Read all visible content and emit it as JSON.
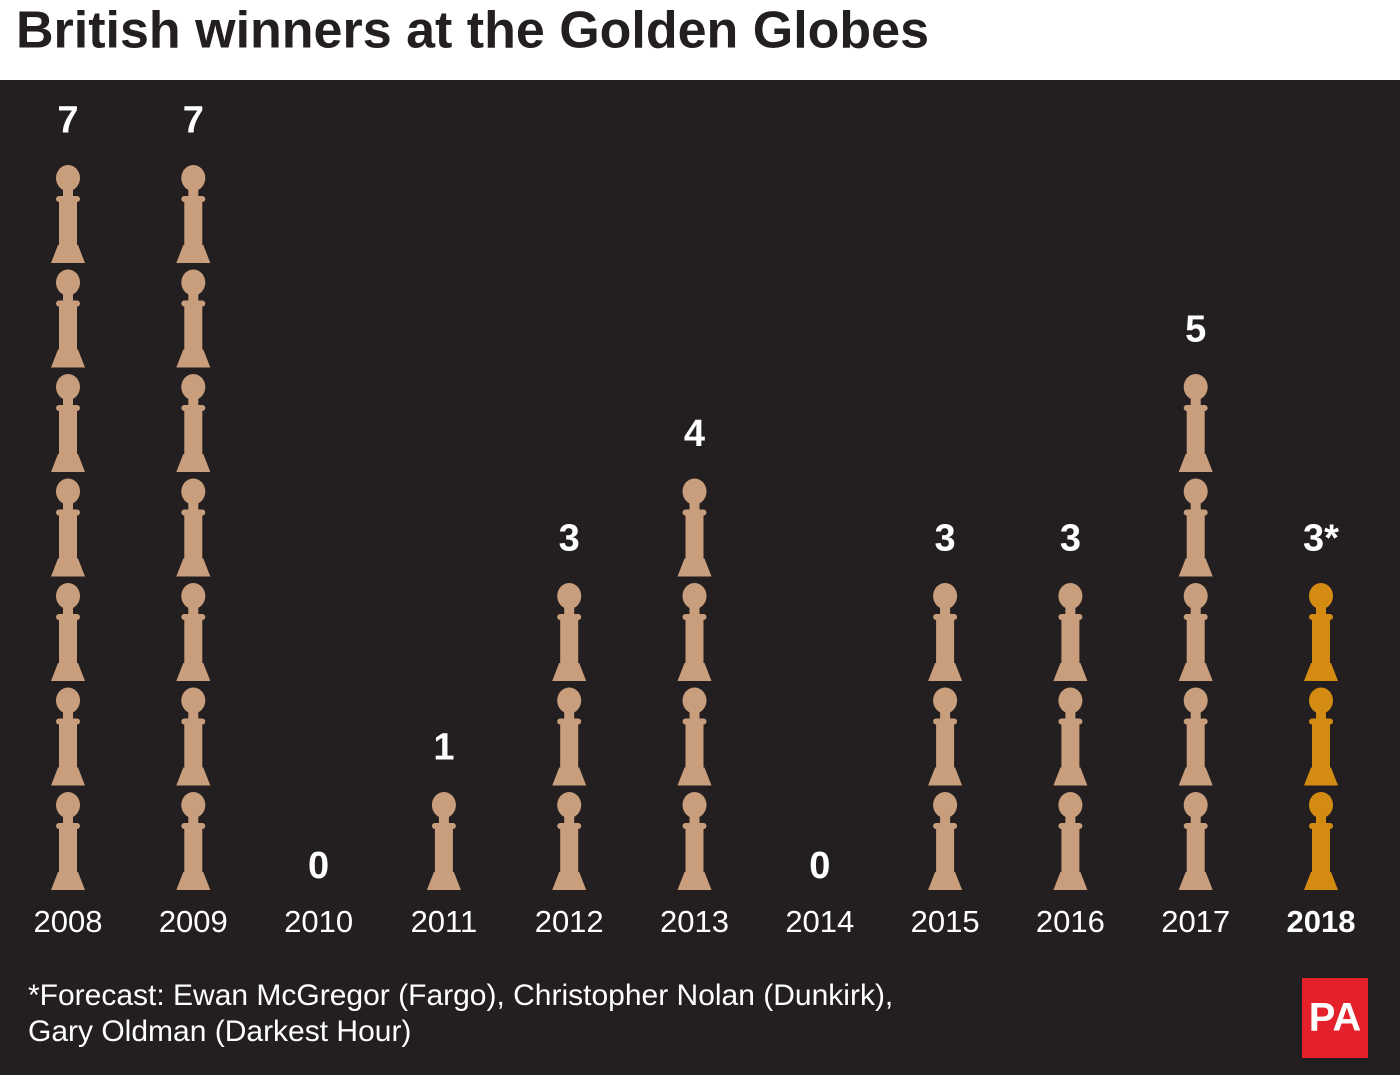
{
  "chart_data": {
    "type": "pictogram",
    "title": "British winners at the Golden Globes",
    "categories": [
      "2008",
      "2009",
      "2010",
      "2011",
      "2012",
      "2013",
      "2014",
      "2015",
      "2016",
      "2017",
      "2018"
    ],
    "values": [
      7,
      7,
      0,
      1,
      3,
      4,
      0,
      3,
      3,
      5,
      3
    ],
    "value_labels": [
      "7",
      "7",
      "0",
      "1",
      "3",
      "4",
      "0",
      "3",
      "3",
      "5",
      "3*"
    ],
    "colors": [
      "#c99e7c",
      "#c99e7c",
      "#c99e7c",
      "#c99e7c",
      "#c99e7c",
      "#c99e7c",
      "#c99e7c",
      "#c99e7c",
      "#c99e7c",
      "#c99e7c",
      "#d38b12"
    ],
    "note": [
      "*Forecast: Ewan McGregor (Fargo), Christopher Nolan (Dunkirk),",
      "Gary Oldman (Darkest Hour)"
    ],
    "logo": "PA"
  }
}
